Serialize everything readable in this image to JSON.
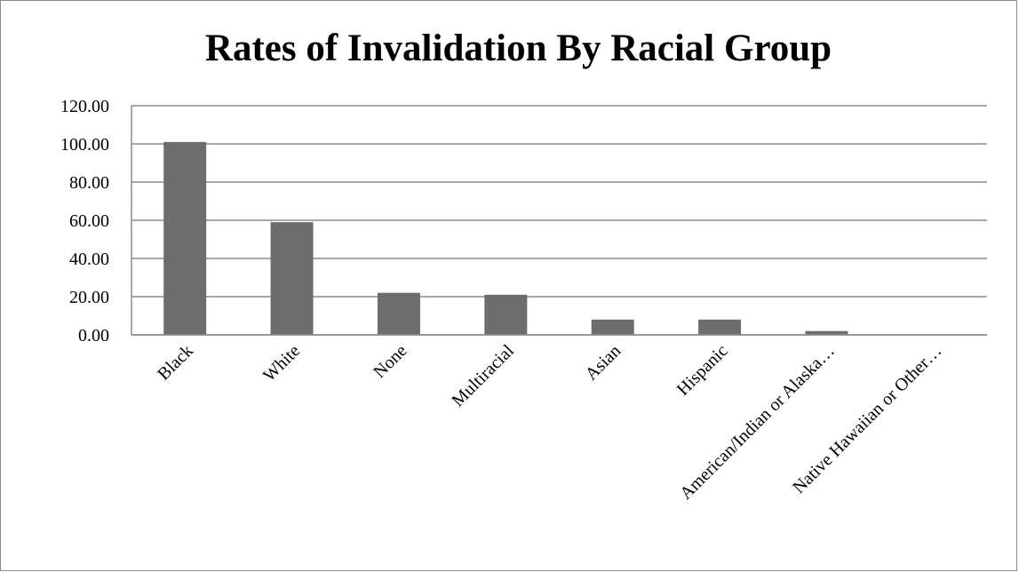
{
  "chart_data": {
    "type": "bar",
    "title": "Rates of Invalidation By Racial Group",
    "xlabel": "",
    "ylabel": "",
    "categories": [
      "Black",
      "White",
      "None",
      "Multiracial",
      "Asian",
      "Hispanic",
      "American/Indian or Alaska…",
      "Native Hawaiian or Other…"
    ],
    "values": [
      101.0,
      59.0,
      22.0,
      21.0,
      8.0,
      8.0,
      2.0,
      0.0
    ],
    "ylim": [
      0,
      120
    ],
    "yticks": [
      "0.00",
      "20.00",
      "40.00",
      "60.00",
      "80.00",
      "100.00",
      "120.00"
    ],
    "grid": true,
    "legend": "none",
    "bar_color": "#6d6d6d",
    "grid_color": "#8c8c8c"
  }
}
